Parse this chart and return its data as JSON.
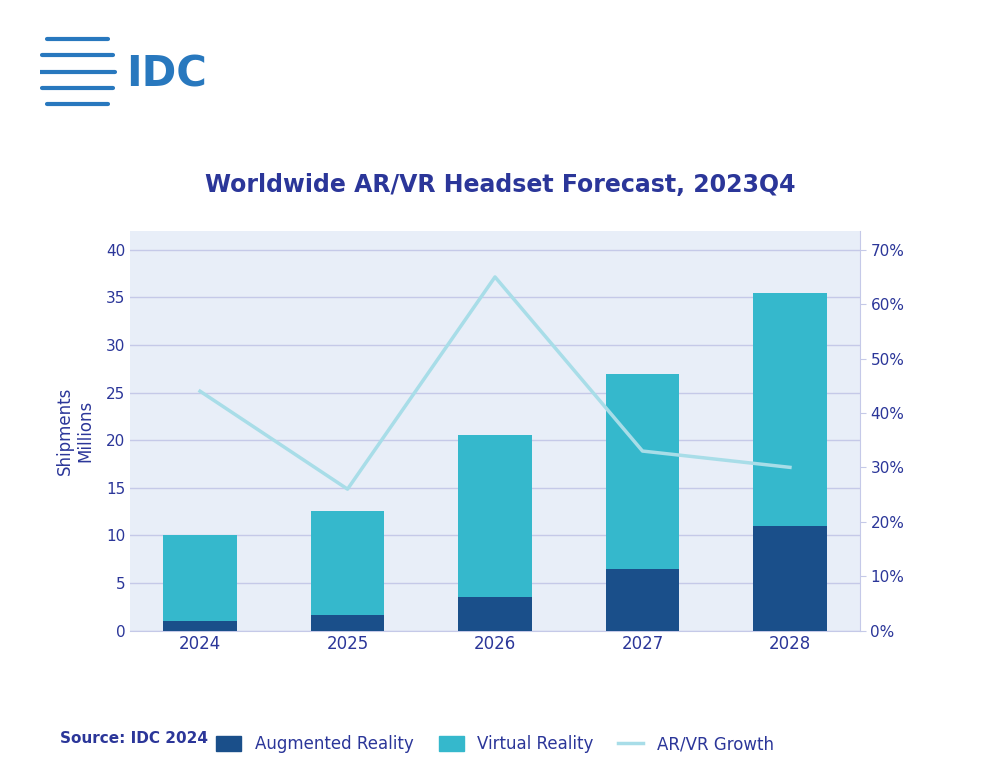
{
  "years": [
    "2024",
    "2025",
    "2026",
    "2027",
    "2028"
  ],
  "ar_values": [
    1.0,
    1.6,
    3.5,
    6.5,
    11.0
  ],
  "vr_values": [
    9.0,
    11.0,
    17.0,
    20.5,
    24.5
  ],
  "growth_pct": [
    44,
    26,
    65,
    33,
    30
  ],
  "title": "Worldwide AR/VR Headset Forecast, 2023Q4",
  "ylabel_left": "Shipments\nMillions",
  "source_text": "Source: IDC 2024",
  "legend_ar": "Augmented Reality",
  "legend_vr": "Virtual Reality",
  "legend_growth": "AR/VR Growth",
  "color_ar": "#1a4f8a",
  "color_vr": "#35b8cc",
  "color_growth": "#a8dde8",
  "color_title": "#2b3699",
  "color_axis_labels": "#2b3699",
  "color_tick_labels": "#2b3699",
  "color_grid": "#c5c9e8",
  "color_spine": "#c5c9e8",
  "plot_bg_color": "#e8eef8",
  "outer_bg_color": "#ffffff",
  "ylim_left": [
    0,
    42
  ],
  "ylim_right": [
    0,
    0.735
  ],
  "yticks_left": [
    0,
    5,
    10,
    15,
    20,
    25,
    30,
    35,
    40
  ],
  "yticks_right": [
    0.0,
    0.1,
    0.2,
    0.3,
    0.4,
    0.5,
    0.6,
    0.7
  ],
  "idc_color": "#2878be",
  "bar_width": 0.5
}
